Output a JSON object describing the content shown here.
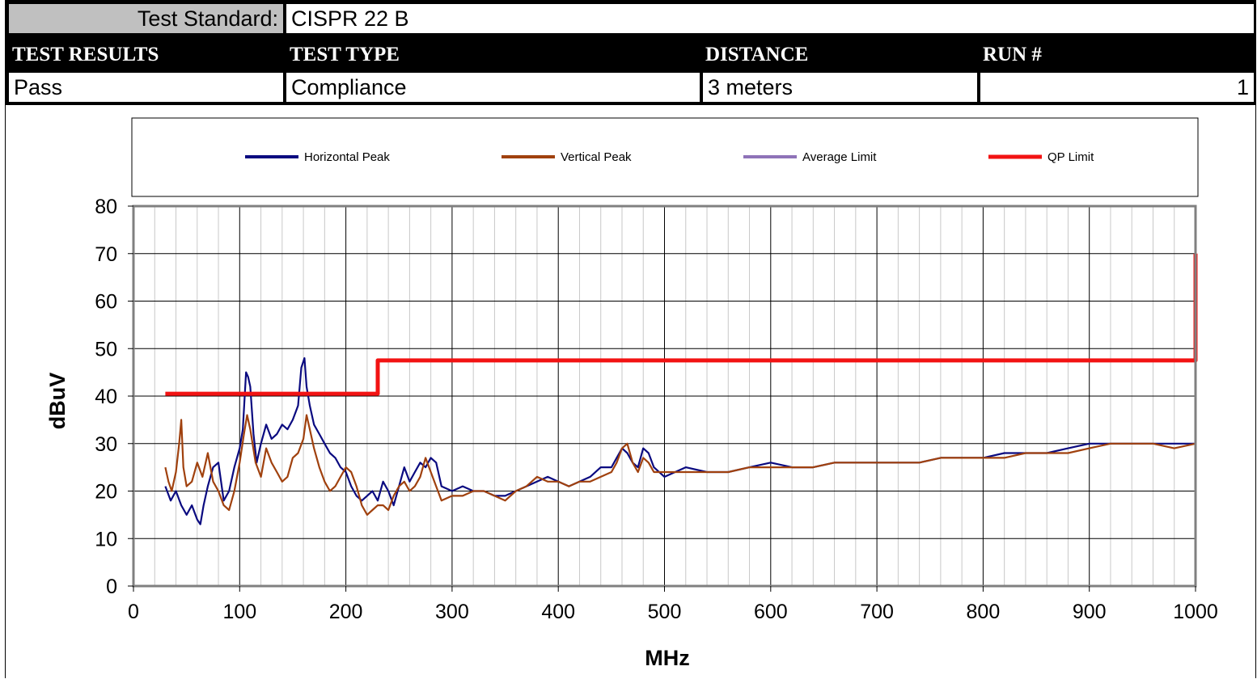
{
  "header": {
    "standard_label": "Test Standard:",
    "standard_value": "CISPR 22 B",
    "columns": [
      "TEST RESULTS",
      "TEST TYPE",
      "DISTANCE",
      "RUN #"
    ],
    "values": [
      "Pass",
      "Compliance",
      "3 meters",
      "1"
    ]
  },
  "colors": {
    "horizontal_peak": "#0a0a80",
    "vertical_peak": "#a0410e",
    "average_limit": "#8f73b8",
    "qp_limit": "#f21313",
    "gridline": "#000000",
    "plot_border": "#808080"
  },
  "chart_data": {
    "type": "line",
    "xlabel": "MHz",
    "ylabel": "dBuV",
    "xlim": [
      0,
      1000
    ],
    "ylim": [
      0,
      80
    ],
    "xticks": [
      0,
      100,
      200,
      300,
      400,
      500,
      600,
      700,
      800,
      900,
      1000
    ],
    "yticks": [
      0,
      10,
      20,
      30,
      40,
      50,
      60,
      70,
      80
    ],
    "grid": true,
    "legend": {
      "position": "top",
      "entries": [
        "Horizontal Peak",
        "Vertical Peak",
        "Average Limit",
        "QP Limit"
      ]
    },
    "series": [
      {
        "name": "Horizontal Peak",
        "x": [
          30,
          35,
          40,
          45,
          50,
          55,
          60,
          63,
          66,
          70,
          75,
          80,
          85,
          90,
          95,
          100,
          103,
          106,
          108,
          110,
          113,
          116,
          120,
          125,
          130,
          135,
          140,
          145,
          150,
          155,
          158,
          161,
          163,
          166,
          170,
          175,
          180,
          185,
          190,
          195,
          200,
          205,
          210,
          215,
          220,
          225,
          230,
          235,
          240,
          245,
          250,
          255,
          260,
          265,
          270,
          275,
          280,
          285,
          290,
          300,
          310,
          320,
          330,
          340,
          350,
          360,
          370,
          380,
          390,
          400,
          410,
          420,
          430,
          440,
          450,
          455,
          460,
          465,
          470,
          475,
          480,
          485,
          490,
          500,
          510,
          520,
          540,
          560,
          580,
          600,
          620,
          640,
          660,
          680,
          700,
          720,
          740,
          760,
          780,
          800,
          820,
          840,
          860,
          880,
          900,
          920,
          940,
          960,
          980,
          1000
        ],
        "y": [
          21,
          18,
          20,
          17,
          15,
          17,
          14,
          13,
          17,
          21,
          25,
          26,
          18,
          20,
          25,
          29,
          33,
          45,
          44,
          42,
          32,
          26,
          30,
          34,
          31,
          32,
          34,
          33,
          35,
          38,
          46,
          48,
          42,
          38,
          34,
          32,
          30,
          28,
          27,
          25,
          24,
          21,
          19,
          18,
          19,
          20,
          18,
          22,
          20,
          17,
          21,
          25,
          22,
          24,
          26,
          25,
          27,
          26,
          21,
          20,
          21,
          20,
          20,
          19,
          19,
          20,
          21,
          22,
          23,
          22,
          21,
          22,
          23,
          25,
          25,
          27,
          29,
          28,
          26,
          25,
          29,
          28,
          25,
          23,
          24,
          25,
          24,
          24,
          25,
          26,
          25,
          25,
          26,
          26,
          26,
          26,
          26,
          27,
          27,
          27,
          28,
          28,
          28,
          29,
          30,
          30,
          30,
          30,
          30,
          30
        ]
      },
      {
        "name": "Vertical Peak",
        "x": [
          30,
          33,
          36,
          40,
          43,
          45,
          47,
          50,
          55,
          60,
          65,
          70,
          75,
          80,
          85,
          90,
          95,
          100,
          104,
          107,
          110,
          115,
          120,
          125,
          130,
          135,
          140,
          145,
          150,
          155,
          160,
          163,
          166,
          170,
          175,
          180,
          185,
          190,
          195,
          200,
          205,
          210,
          215,
          220,
          225,
          230,
          235,
          240,
          245,
          250,
          255,
          260,
          265,
          270,
          275,
          280,
          285,
          290,
          300,
          310,
          320,
          330,
          340,
          350,
          360,
          370,
          380,
          390,
          400,
          410,
          420,
          430,
          440,
          450,
          455,
          460,
          465,
          470,
          475,
          480,
          485,
          490,
          500,
          510,
          520,
          540,
          560,
          580,
          600,
          620,
          640,
          660,
          680,
          700,
          720,
          740,
          760,
          780,
          800,
          820,
          840,
          860,
          880,
          900,
          920,
          940,
          960,
          980,
          1000
        ],
        "y": [
          25,
          22,
          20,
          24,
          30,
          35,
          25,
          21,
          22,
          26,
          23,
          28,
          22,
          20,
          17,
          16,
          20,
          26,
          32,
          36,
          33,
          26,
          23,
          29,
          26,
          24,
          22,
          23,
          27,
          28,
          31,
          36,
          33,
          29,
          25,
          22,
          20,
          21,
          23,
          25,
          24,
          21,
          17,
          15,
          16,
          17,
          17,
          16,
          19,
          21,
          22,
          20,
          21,
          23,
          27,
          24,
          21,
          18,
          19,
          19,
          20,
          20,
          19,
          18,
          20,
          21,
          23,
          22,
          22,
          21,
          22,
          22,
          23,
          24,
          26,
          29,
          30,
          26,
          24,
          27,
          26,
          24,
          24,
          24,
          24,
          24,
          24,
          25,
          25,
          25,
          25,
          26,
          26,
          26,
          26,
          26,
          27,
          27,
          27,
          27,
          28,
          28,
          28,
          29,
          30,
          30,
          30,
          29,
          30
        ]
      },
      {
        "name": "Average Limit",
        "x": [],
        "y": []
      },
      {
        "name": "QP Limit",
        "x": [
          30,
          230,
          230,
          1000,
          1000
        ],
        "y": [
          40.5,
          40.5,
          47.5,
          47.5,
          70
        ]
      }
    ]
  }
}
